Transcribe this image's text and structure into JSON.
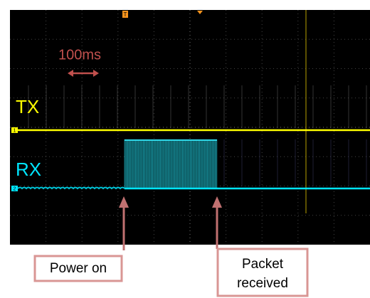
{
  "scale_label": "100ms",
  "channels": [
    {
      "number": "1",
      "label": "TX"
    },
    {
      "number": "2",
      "label": "RX"
    }
  ],
  "trigger_marker": "T",
  "annotations": [
    {
      "text": "Power on"
    },
    {
      "lines": [
        "Packet",
        "received"
      ]
    }
  ]
}
